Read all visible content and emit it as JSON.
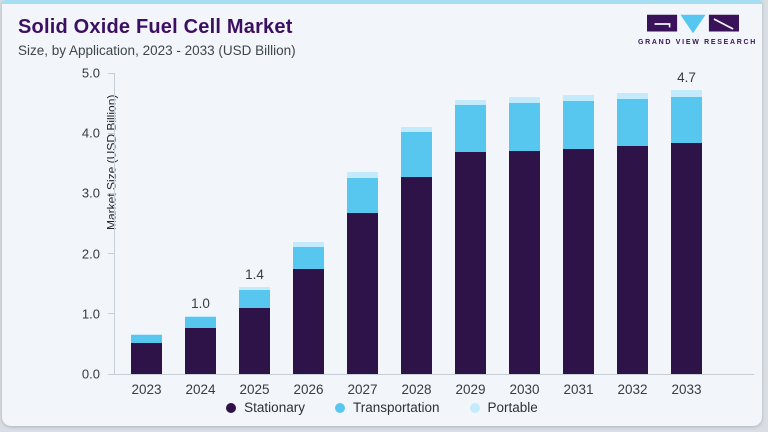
{
  "page": {
    "background": "#d9dee4",
    "card_background": "#f2f6fa",
    "accent_bar_color": "#a5ddf2"
  },
  "header": {
    "title": "Solid Oxide Fuel Cell Market",
    "subtitle": "Size, by Application, 2023 - 2033 (USD Billion)",
    "title_color": "#3d0f63"
  },
  "logo": {
    "text": "GRAND VIEW RESEARCH",
    "purple": "#3a1259",
    "blue": "#56c7f0"
  },
  "chart_data": {
    "type": "bar",
    "stacked": true,
    "title": "Solid Oxide Fuel Cell Market Size, by Application, 2023 - 2033 (USD Billion)",
    "categories": [
      "2023",
      "2024",
      "2025",
      "2026",
      "2027",
      "2028",
      "2029",
      "2030",
      "2031",
      "2032",
      "2033"
    ],
    "series": [
      {
        "name": "Stationary",
        "color": "#2e1348",
        "values": [
          0.52,
          0.76,
          1.1,
          1.74,
          2.67,
          3.27,
          3.68,
          3.71,
          3.74,
          3.78,
          3.83
        ]
      },
      {
        "name": "Transportation",
        "color": "#58c7f0",
        "values": [
          0.13,
          0.18,
          0.3,
          0.37,
          0.58,
          0.75,
          0.79,
          0.8,
          0.8,
          0.79,
          0.77
        ]
      },
      {
        "name": "Portable",
        "color": "#c4ebfb",
        "values": [
          0.02,
          0.03,
          0.04,
          0.08,
          0.11,
          0.08,
          0.09,
          0.1,
          0.1,
          0.1,
          0.11
        ]
      }
    ],
    "totals": [
      0.67,
      0.97,
      1.44,
      2.19,
      3.36,
      4.1,
      4.56,
      4.61,
      4.64,
      4.67,
      4.71
    ],
    "bar_value_labels": [
      null,
      "1.0",
      "1.4",
      null,
      null,
      null,
      null,
      null,
      null,
      null,
      "4.7"
    ],
    "xlabel": "",
    "ylabel": "Market Size (USD Billion)",
    "ylim": [
      0,
      5
    ],
    "yticks": [
      "0.0",
      "1.0",
      "2.0",
      "3.0",
      "4.0",
      "5.0"
    ],
    "grid": false,
    "legend_position": "bottom"
  }
}
